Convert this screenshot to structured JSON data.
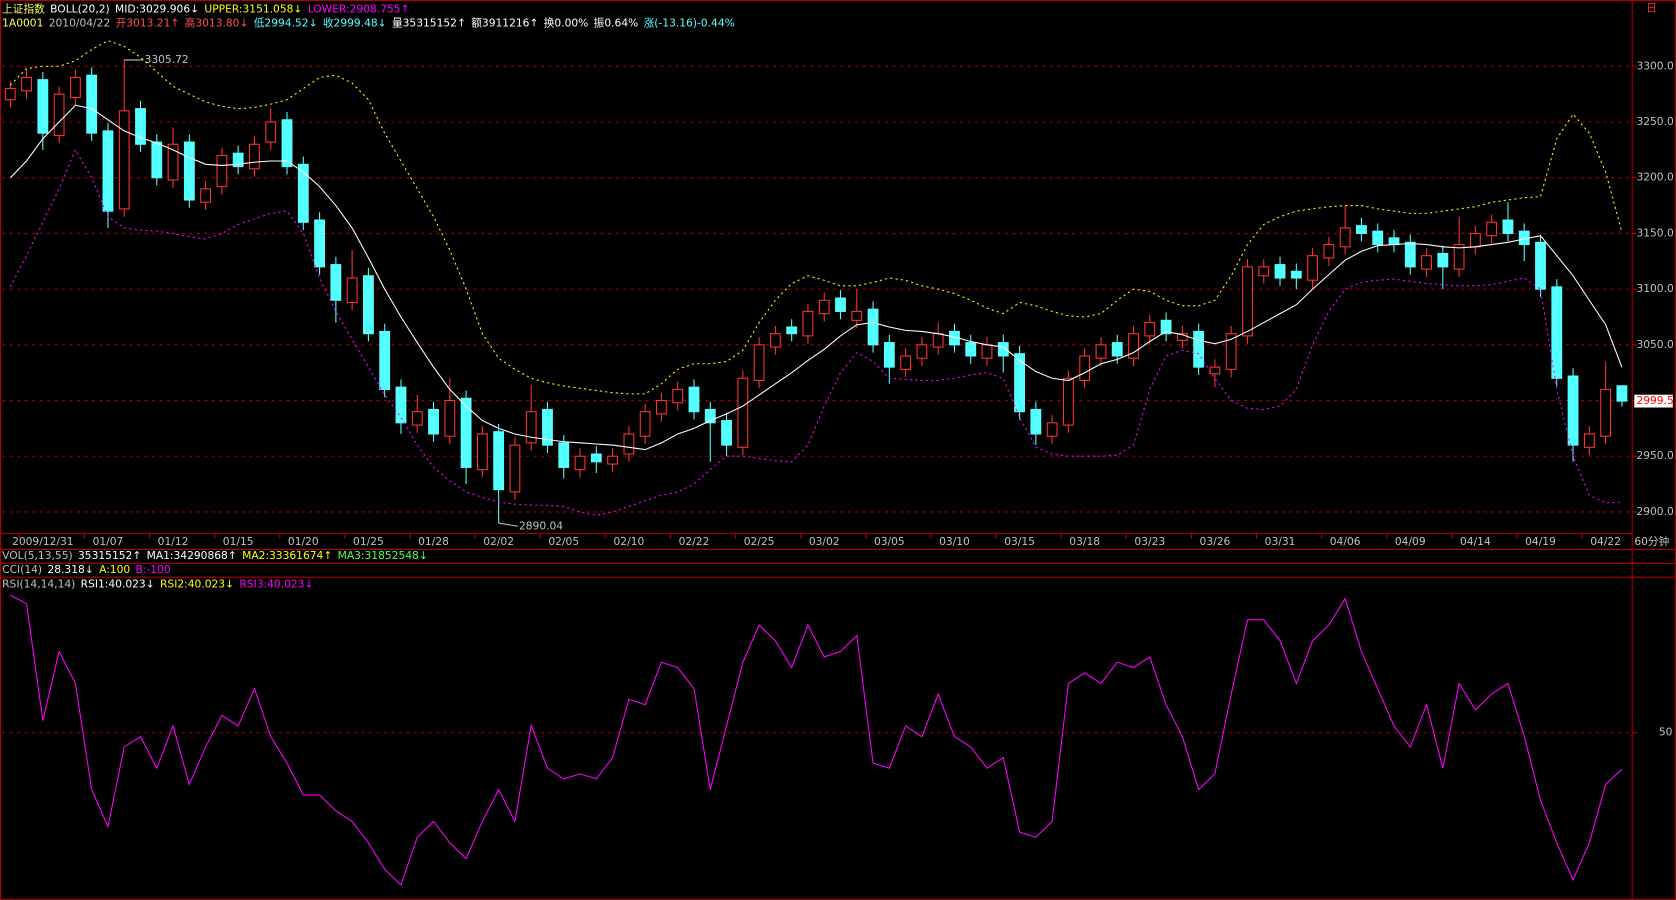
{
  "header": {
    "period_mark": "日",
    "quote_items": [
      {
        "text": "1A0001",
        "color": "#ffff54"
      },
      {
        "text": "2010/04/22",
        "color": "#c0c0c0"
      },
      {
        "text": "开3013.21↑",
        "color": "#ff5050"
      },
      {
        "text": "高3013.80↓",
        "color": "#ff5050"
      },
      {
        "text": "低2994.52↓",
        "color": "#54ffff"
      },
      {
        "text": "收2999.48↓",
        "color": "#54ffff"
      },
      {
        "text": "量35315152↑",
        "color": "#ffffff"
      },
      {
        "text": "额3911216↑",
        "color": "#ffffff"
      },
      {
        "text": "换0.00%",
        "color": "#ffffff"
      },
      {
        "text": "振0.64%",
        "color": "#ffffff"
      },
      {
        "text": "涨(-13.16)-0.44%",
        "color": "#54ffff"
      }
    ],
    "collapsed_panels": [
      {
        "items": [
          {
            "text": "VOL(5,13,55)",
            "color": "#c0c0c0"
          },
          {
            "text": "35315152↑",
            "color": "#ffffff"
          },
          {
            "text": "MA1:34290868↑",
            "color": "#ffffff"
          },
          {
            "text": "MA2:33361674↑",
            "color": "#ffff00"
          },
          {
            "text": "MA3:31852548↓",
            "color": "#54ff54"
          }
        ]
      },
      {
        "items": [
          {
            "text": "CCI(14)",
            "color": "#c0c0c0"
          },
          {
            "text": "28.318↓",
            "color": "#ffffff"
          },
          {
            "text": "A:100",
            "color": "#ffff00"
          },
          {
            "text": "B:-100",
            "color": "#ff00ff"
          }
        ]
      }
    ]
  },
  "chart_data": [
    {
      "type": "candlestick",
      "title": "上证指数",
      "indicator": "BOLL(20,2)",
      "period": "60分钟",
      "up_color": "#ff3232",
      "down_color": "#54ffff",
      "grid": true,
      "last_price": 2999.5,
      "categories": [
        null,
        null,
        "2009/12/31",
        null,
        null,
        null,
        "01/07",
        null,
        null,
        null,
        "01/12",
        null,
        null,
        null,
        "01/15",
        null,
        null,
        null,
        "01/20",
        null,
        null,
        null,
        "01/25",
        null,
        null,
        null,
        "01/28",
        null,
        null,
        null,
        "02/02",
        null,
        null,
        null,
        "02/05",
        null,
        null,
        null,
        "02/10",
        null,
        null,
        null,
        "02/22",
        null,
        null,
        null,
        "02/25",
        null,
        null,
        null,
        "03/02",
        null,
        null,
        null,
        "03/05",
        null,
        null,
        null,
        "03/10",
        null,
        null,
        null,
        "03/15",
        null,
        null,
        null,
        "03/18",
        null,
        null,
        null,
        "03/23",
        null,
        null,
        null,
        "03/26",
        null,
        null,
        null,
        "03/31",
        null,
        null,
        null,
        "04/06",
        null,
        null,
        null,
        "04/09",
        null,
        null,
        null,
        "04/14",
        null,
        null,
        null,
        "04/19",
        null,
        null,
        null,
        "04/22",
        null
      ],
      "open": [
        3270,
        3278,
        3288,
        3238,
        3272,
        3292,
        3242,
        3172,
        3262,
        3232,
        3198,
        3232,
        3178,
        3192,
        3222,
        3208,
        3232,
        3252,
        3212,
        3162,
        3122,
        3088,
        3112,
        3062,
        3012,
        2978,
        2992,
        2968,
        3002,
        2938,
        2972,
        2918,
        2962,
        2992,
        2962,
        2938,
        2952,
        2943,
        2952,
        2968,
        2988,
        2998,
        3012,
        2992,
        2982,
        2958,
        3018,
        3048,
        3066,
        3058,
        3078,
        3092,
        3072,
        3082,
        3052,
        3028,
        3038,
        3048,
        3062,
        3052,
        3038,
        3052,
        3042,
        2992,
        2968,
        2978,
        3018,
        3038,
        3052,
        3038,
        3058,
        3072,
        3054,
        3062,
        3024,
        3028,
        3058,
        3112,
        3122,
        3116,
        3108,
        3128,
        3138,
        3157,
        3152,
        3146,
        3142,
        3118,
        3132,
        3118,
        3138,
        3148,
        3162,
        3152,
        3142,
        3102,
        3022,
        2958,
        2968,
        3013.21
      ],
      "high": [
        3287,
        3297,
        3295,
        3282,
        3297,
        3299,
        3249,
        3305.72,
        3269,
        3239,
        3245,
        3239,
        3197,
        3227,
        3229,
        3237,
        3262,
        3259,
        3219,
        3169,
        3129,
        3135,
        3119,
        3069,
        3019,
        3005,
        2999,
        3020,
        3009,
        2977,
        2979,
        2967,
        3014,
        2999,
        2969,
        2957,
        2959,
        2957,
        2977,
        2997,
        3007,
        3017,
        3019,
        2999,
        2989,
        3027,
        3057,
        3067,
        3073,
        3087,
        3097,
        3099,
        3100,
        3089,
        3059,
        3047,
        3057,
        3070,
        3069,
        3059,
        3057,
        3059,
        3049,
        2999,
        2987,
        3027,
        3047,
        3057,
        3059,
        3067,
        3077,
        3079,
        3067,
        3069,
        3037,
        3067,
        3127,
        3127,
        3129,
        3123,
        3137,
        3147,
        3175,
        3164,
        3159,
        3153,
        3149,
        3137,
        3139,
        3165,
        3157,
        3167,
        3178,
        3159,
        3149,
        3109,
        3029,
        2977,
        3035,
        3013.8
      ],
      "low": [
        3263,
        3271,
        3225,
        3231,
        3265,
        3233,
        3155,
        3165,
        3223,
        3193,
        3191,
        3173,
        3171,
        3185,
        3203,
        3201,
        3225,
        3203,
        3153,
        3113,
        3070,
        3081,
        3053,
        3003,
        2970,
        2971,
        2963,
        2961,
        2925,
        2931,
        2890.04,
        2911,
        2955,
        2953,
        2930,
        2931,
        2935,
        2936,
        2945,
        2961,
        2981,
        2991,
        2983,
        2945,
        2950,
        2951,
        3011,
        3041,
        3053,
        3051,
        3071,
        3073,
        3065,
        3043,
        3015,
        3021,
        3031,
        3041,
        3043,
        3033,
        3031,
        3025,
        2983,
        2960,
        2961,
        2971,
        3011,
        3031,
        3033,
        3031,
        3051,
        3053,
        3047,
        3023,
        3012,
        3021,
        3051,
        3105,
        3103,
        3100,
        3101,
        3121,
        3131,
        3143,
        3133,
        3133,
        3113,
        3111,
        3100,
        3111,
        3131,
        3141,
        3143,
        3125,
        3093,
        3013,
        2945,
        2951,
        2961,
        2994.52
      ],
      "close": [
        3280,
        3290,
        3240,
        3275,
        3290,
        3240,
        3170,
        3260,
        3230,
        3200,
        3230,
        3180,
        3190,
        3220,
        3210,
        3230,
        3250,
        3210,
        3160,
        3120,
        3090,
        3110,
        3060,
        3010,
        2980,
        2990,
        2970,
        3000,
        2940,
        2970,
        2920,
        2960,
        2990,
        2960,
        2940,
        2950,
        2945,
        2950,
        2970,
        2990,
        3000,
        3010,
        2990,
        2980,
        2960,
        3020,
        3050,
        3060,
        3060,
        3080,
        3090,
        3080,
        3080,
        3050,
        3030,
        3040,
        3050,
        3060,
        3050,
        3040,
        3050,
        3040,
        2990,
        2970,
        2980,
        3020,
        3040,
        3050,
        3040,
        3060,
        3070,
        3060,
        3060,
        3030,
        3030,
        3060,
        3120,
        3120,
        3110,
        3110,
        3130,
        3140,
        3155,
        3150,
        3140,
        3140,
        3120,
        3130,
        3120,
        3140,
        3150,
        3160,
        3150,
        3140,
        3100,
        3020,
        2960,
        2970,
        3010,
        2999.48
      ],
      "series": [
        {
          "name": "MID:3029.906↓",
          "color": "#ffffff",
          "style": "solid",
          "values": [
            3200,
            3215,
            3235,
            3250,
            3265,
            3262,
            3252,
            3242,
            3236,
            3231,
            3225,
            3218,
            3212,
            3211,
            3212,
            3214,
            3215,
            3215,
            3205,
            3192,
            3175,
            3155,
            3128,
            3100,
            3075,
            3052,
            3030,
            3010,
            2995,
            2982,
            2975,
            2970,
            2967,
            2965,
            2963,
            2962,
            2961,
            2960,
            2958,
            2956,
            2962,
            2970,
            2975,
            2982,
            2988,
            2995,
            3005,
            3015,
            3025,
            3036,
            3046,
            3058,
            3068,
            3070,
            3066,
            3063,
            3062,
            3060,
            3057,
            3053,
            3050,
            3048,
            3036,
            3026,
            3020,
            3018,
            3025,
            3033,
            3037,
            3043,
            3053,
            3062,
            3059,
            3054,
            3051,
            3055,
            3062,
            3070,
            3078,
            3086,
            3100,
            3113,
            3126,
            3134,
            3139,
            3140,
            3141,
            3140,
            3138,
            3137,
            3138,
            3140,
            3142,
            3145,
            3148,
            3130,
            3112,
            3090,
            3068,
            3029.906
          ]
        },
        {
          "name": "UPPER:3151.058↓",
          "color": "#ffff00",
          "style": "dotted",
          "values": [
            3283,
            3298,
            3300,
            3300,
            3305,
            3315,
            3323,
            3318,
            3308,
            3295,
            3282,
            3275,
            3268,
            3264,
            3262,
            3263,
            3266,
            3270,
            3280,
            3290,
            3292,
            3285,
            3270,
            3240,
            3215,
            3190,
            3165,
            3135,
            3100,
            3060,
            3038,
            3028,
            3020,
            3016,
            3013,
            3011,
            3009,
            3007,
            3006,
            3006,
            3015,
            3028,
            3033,
            3033,
            3035,
            3045,
            3070,
            3090,
            3105,
            3112,
            3108,
            3103,
            3103,
            3106,
            3110,
            3108,
            3103,
            3100,
            3096,
            3090,
            3083,
            3078,
            3088,
            3085,
            3080,
            3076,
            3075,
            3078,
            3090,
            3100,
            3098,
            3090,
            3085,
            3085,
            3090,
            3112,
            3140,
            3158,
            3165,
            3170,
            3172,
            3174,
            3175,
            3175,
            3172,
            3170,
            3168,
            3168,
            3170,
            3172,
            3174,
            3178,
            3180,
            3182,
            3183,
            3235,
            3257,
            3240,
            3205,
            3151.058
          ]
        },
        {
          "name": "LOWER:2908.755↑",
          "color": "#ff00ff",
          "style": "dotted",
          "values": [
            3102,
            3130,
            3160,
            3190,
            3225,
            3200,
            3165,
            3155,
            3153,
            3152,
            3150,
            3147,
            3145,
            3150,
            3158,
            3163,
            3168,
            3170,
            3150,
            3110,
            3080,
            3055,
            3030,
            3005,
            2985,
            2960,
            2940,
            2928,
            2918,
            2913,
            2909,
            2907,
            2906,
            2906,
            2905,
            2900,
            2897,
            2900,
            2905,
            2910,
            2915,
            2918,
            2925,
            2938,
            2950,
            2950,
            2948,
            2946,
            2945,
            2960,
            2995,
            3025,
            3043,
            3035,
            3020,
            3019,
            3018,
            3018,
            3020,
            3023,
            3025,
            3020,
            2985,
            2958,
            2952,
            2950,
            2950,
            2950,
            2951,
            2960,
            3010,
            3040,
            3045,
            3042,
            3020,
            3000,
            2993,
            2992,
            2995,
            3010,
            3050,
            3080,
            3100,
            3106,
            3108,
            3109,
            3107,
            3105,
            3104,
            3103,
            3103,
            3104,
            3107,
            3110,
            3100,
            3010,
            2950,
            2915,
            2908,
            2908.755
          ]
        }
      ],
      "ylim": [
        2882.7,
        3354.7
      ],
      "yticks": [
        {
          "value": 2900,
          "label": "2900.0"
        },
        {
          "value": 2950,
          "label": "2950.0"
        },
        {
          "value": 3000,
          "label": "3000.0"
        },
        {
          "value": 3050,
          "label": "3050.0"
        },
        {
          "value": 3100,
          "label": "3100.0"
        },
        {
          "value": 3150,
          "label": "3150.0"
        },
        {
          "value": 3200,
          "label": "3200.0"
        },
        {
          "value": 3250,
          "label": "3250.0"
        },
        {
          "value": 3300,
          "label": "3300.0"
        }
      ]
    },
    {
      "type": "line",
      "title": "RSI(14,14,14)",
      "grid": true,
      "legend_texts": [
        {
          "text": "RSI1:40.023↓",
          "color": "#ffffff"
        },
        {
          "text": "RSI2:40.023↓",
          "color": "#ffff00"
        }
      ],
      "series": [
        {
          "name": "RSI3:40.023↓",
          "color": "#ff00ff",
          "style": "solid",
          "values": [
            87.4,
            85.1,
            53.3,
            72.1,
            63.4,
            34.5,
            24.4,
            46.1,
            48.9,
            40.3,
            51.8,
            35.9,
            46.1,
            54.7,
            51.8,
            62.0,
            48.9,
            41.7,
            33.0,
            33.0,
            28.7,
            25.8,
            20.0,
            12.8,
            8.5,
            21.5,
            25.8,
            20.0,
            15.7,
            25.8,
            34.5,
            25.8,
            52.0,
            40.3,
            37.4,
            38.8,
            37.4,
            43.2,
            59.1,
            57.6,
            69.2,
            67.7,
            62.0,
            34.5,
            51.8,
            69.2,
            79.3,
            75.0,
            67.7,
            79.3,
            70.6,
            72.1,
            76.4,
            41.7,
            40.3,
            51.8,
            48.9,
            60.5,
            48.9,
            46.1,
            40.3,
            43.2,
            22.9,
            21.5,
            25.8,
            63.4,
            66.3,
            63.4,
            69.2,
            67.7,
            70.6,
            57.6,
            48.9,
            34.5,
            38.8,
            60.5,
            80.7,
            80.7,
            75.0,
            63.4,
            75.0,
            79.3,
            86.5,
            72.1,
            62.0,
            51.8,
            46.1,
            57.6,
            40.3,
            63.4,
            56.2,
            60.5,
            63.4,
            49.0,
            31.6,
            20.0,
            9.9,
            20.0,
            35.9,
            40.023
          ]
        }
      ],
      "ylim": [
        5,
        90
      ],
      "yticks": [
        50
      ]
    }
  ]
}
